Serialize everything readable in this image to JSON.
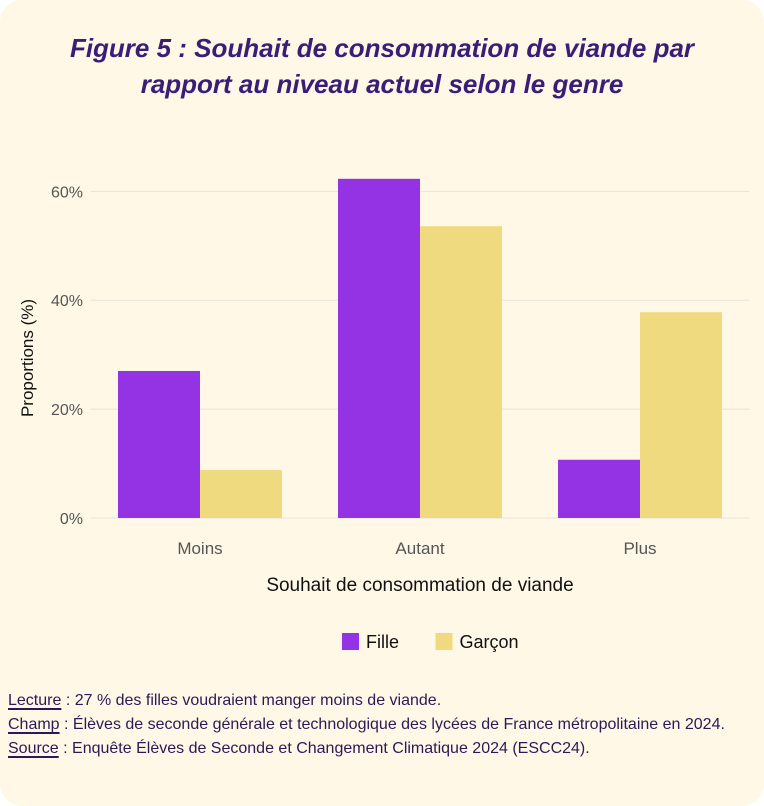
{
  "figure": {
    "title_line1": "Figure 5 : Souhait de consommation de viande par",
    "title_line2": "rapport au niveau actuel selon le genre"
  },
  "chart_data": {
    "type": "bar",
    "categories": [
      "Moins",
      "Autant",
      "Plus"
    ],
    "series": [
      {
        "name": "Fille",
        "color": "#9333e3",
        "values": [
          27,
          62.3,
          10.7
        ]
      },
      {
        "name": "Garçon",
        "color": "#f0da80",
        "values": [
          8.8,
          53.6,
          37.8
        ]
      }
    ],
    "xlabel": "Souhait de consommation de viande",
    "ylabel": "Proportions (%)",
    "ylim": [
      0,
      63
    ],
    "yticks": [
      0,
      20,
      40,
      60
    ],
    "ytick_labels": [
      "0%",
      "20%",
      "40%",
      "60%"
    ],
    "grid": true,
    "legend_position": "bottom"
  },
  "notes": {
    "lecture_key": "Lecture",
    "lecture_text": " : 27 % des filles voudraient manger moins de viande.",
    "champ_key": "Champ",
    "champ_text": " : Élèves de seconde générale et technologique des lycées de France métropolitaine en 2024.",
    "source_key": "Source",
    "source_text": " : Enquête Élèves de Seconde et Changement Climatique 2024 (ESCC24)."
  }
}
